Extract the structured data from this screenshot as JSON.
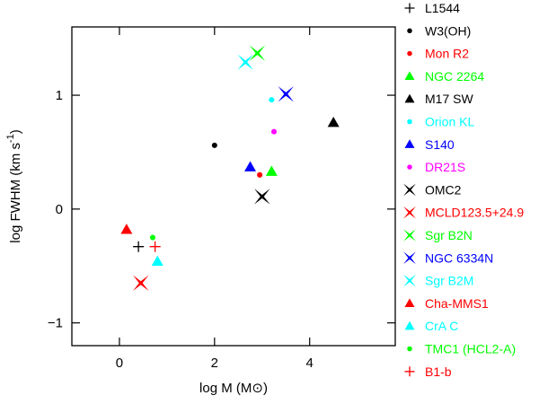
{
  "chart_data": {
    "type": "scatter",
    "title": "",
    "xlabel": "log M (M⊙)",
    "xlabel_text": "log M (M",
    "xlabel_unit_symbol": "⊙",
    "xlabel_close": ")",
    "ylabel_text": "log FWHM (km s",
    "ylabel_exponent": "-1",
    "ylabel_close": ")",
    "xlim": [
      -1,
      5.8
    ],
    "ylim": [
      -1.2,
      1.6
    ],
    "xticks": [
      0,
      2,
      4
    ],
    "xtick_labels": [
      "0",
      "2",
      "4"
    ],
    "yticks": [
      -1,
      0,
      1
    ],
    "ytick_labels": [
      "−1",
      "0",
      "1"
    ],
    "grid": false,
    "legend_position": "right",
    "series": [
      {
        "name": "L1544",
        "marker": "plus",
        "color": "#000000",
        "points": [
          {
            "x": 0.4,
            "y": -0.33
          }
        ]
      },
      {
        "name": "W3(OH)",
        "marker": "dot",
        "color": "#000000",
        "points": [
          {
            "x": 2.0,
            "y": 0.56
          }
        ]
      },
      {
        "name": "Mon R2",
        "marker": "dot",
        "color": "#ff0000",
        "points": [
          {
            "x": 2.95,
            "y": 0.3
          }
        ]
      },
      {
        "name": "NGC 2264",
        "marker": "triangle",
        "color": "#00ff00",
        "points": [
          {
            "x": 3.2,
            "y": 0.33
          }
        ]
      },
      {
        "name": "M17 SW",
        "marker": "triangle",
        "color": "#000000",
        "points": [
          {
            "x": 4.5,
            "y": 0.76
          }
        ]
      },
      {
        "name": "Orion KL",
        "marker": "dot",
        "color": "#00ffff",
        "points": [
          {
            "x": 3.2,
            "y": 0.96
          }
        ]
      },
      {
        "name": "S140",
        "marker": "triangle",
        "color": "#0000ff",
        "points": [
          {
            "x": 2.75,
            "y": 0.37
          }
        ]
      },
      {
        "name": "DR21S",
        "marker": "dot",
        "color": "#ff00ff",
        "points": [
          {
            "x": 3.25,
            "y": 0.68
          }
        ]
      },
      {
        "name": "OMC2",
        "marker": "star",
        "color": "#000000",
        "points": [
          {
            "x": 3.0,
            "y": 0.11
          }
        ]
      },
      {
        "name": "MCLD123.5+24.9",
        "marker": "star",
        "color": "#ff0000",
        "points": [
          {
            "x": 0.45,
            "y": -0.65
          }
        ]
      },
      {
        "name": "Sgr B2N",
        "marker": "star",
        "color": "#00ff00",
        "points": [
          {
            "x": 2.9,
            "y": 1.37
          }
        ]
      },
      {
        "name": "NGC 6334N",
        "marker": "star",
        "color": "#0000ff",
        "points": [
          {
            "x": 3.5,
            "y": 1.01
          }
        ]
      },
      {
        "name": "Sgr B2M",
        "marker": "star",
        "color": "#00ffff",
        "points": [
          {
            "x": 2.65,
            "y": 1.29
          }
        ]
      },
      {
        "name": "Cha-MMS1",
        "marker": "triangle",
        "color": "#ff0000",
        "points": [
          {
            "x": 0.15,
            "y": -0.18
          }
        ]
      },
      {
        "name": "CrA C",
        "marker": "triangle",
        "color": "#00ffff",
        "points": [
          {
            "x": 0.8,
            "y": -0.46
          }
        ]
      },
      {
        "name": "TMC1 (HCL2-A)",
        "marker": "dot",
        "color": "#00ff00",
        "points": [
          {
            "x": 0.7,
            "y": -0.25
          }
        ]
      },
      {
        "name": "B1-b",
        "marker": "plus",
        "color": "#ff0000",
        "points": [
          {
            "x": 0.75,
            "y": -0.33
          }
        ]
      }
    ]
  }
}
